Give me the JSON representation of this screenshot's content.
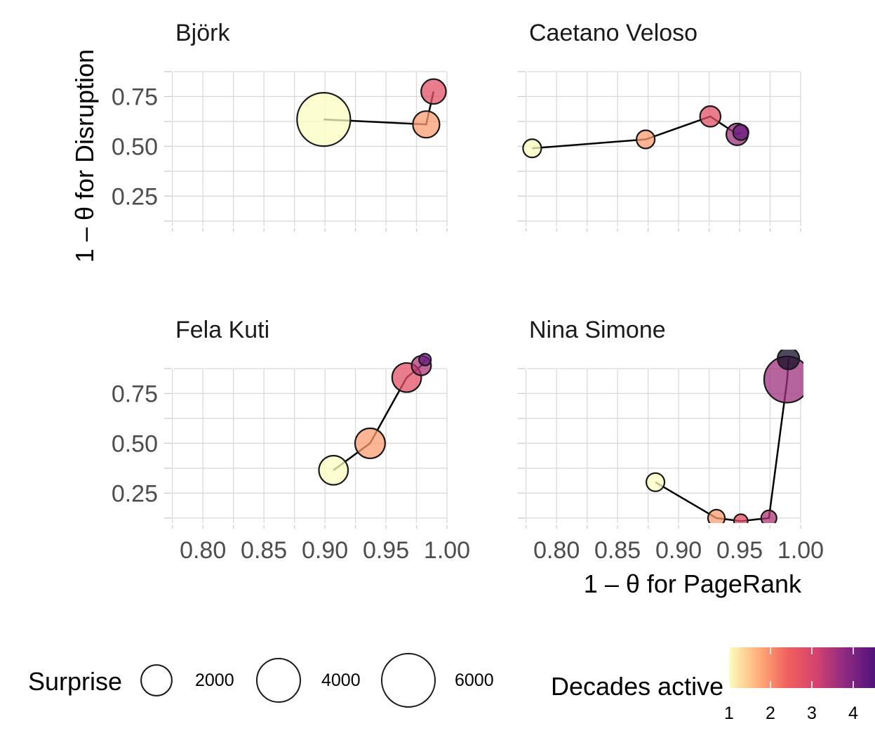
{
  "chart_data": {
    "type": "scatter",
    "subtype": "connected-bubble-facets",
    "xlabel": "1 – θ for PageRank",
    "ylabel": "1 – θ for Disruption",
    "xlim": [
      0.77,
      1.0
    ],
    "ylim": [
      0.1,
      0.97
    ],
    "x_ticks": [
      0.8,
      0.85,
      0.9,
      0.95,
      1.0
    ],
    "x_tick_labels": [
      "0.80",
      "0.85",
      "0.90",
      "0.95",
      "1.00"
    ],
    "y_ticks": [
      0.25,
      0.5,
      0.75
    ],
    "y_tick_labels": [
      "0.25",
      "0.50",
      "0.75"
    ],
    "grid": true,
    "facets": [
      {
        "title": "Björk",
        "points": [
          {
            "x": 0.899,
            "y": 0.635,
            "decade": 1,
            "surprise": 6000
          },
          {
            "x": 0.983,
            "y": 0.61,
            "decade": 2,
            "surprise": 1500
          },
          {
            "x": 0.989,
            "y": 0.775,
            "decade": 3,
            "surprise": 1300
          }
        ]
      },
      {
        "title": "Caetano Veloso",
        "points": [
          {
            "x": 0.78,
            "y": 0.49,
            "decade": 1,
            "surprise": 700
          },
          {
            "x": 0.873,
            "y": 0.535,
            "decade": 2,
            "surprise": 700
          },
          {
            "x": 0.926,
            "y": 0.65,
            "decade": 3,
            "surprise": 900
          },
          {
            "x": 0.948,
            "y": 0.56,
            "decade": 4,
            "surprise": 1000
          },
          {
            "x": 0.951,
            "y": 0.57,
            "decade": 4.4,
            "surprise": 500
          }
        ]
      },
      {
        "title": "Fela Kuti",
        "points": [
          {
            "x": 0.907,
            "y": 0.365,
            "decade": 1,
            "surprise": 1800
          },
          {
            "x": 0.937,
            "y": 0.5,
            "decade": 2,
            "surprise": 1900
          },
          {
            "x": 0.967,
            "y": 0.83,
            "decade": 3,
            "surprise": 1800
          },
          {
            "x": 0.979,
            "y": 0.89,
            "decade": 3.8,
            "surprise": 800
          },
          {
            "x": 0.982,
            "y": 0.92,
            "decade": 4.4,
            "surprise": 300
          }
        ]
      },
      {
        "title": "Nina Simone",
        "points": [
          {
            "x": 0.881,
            "y": 0.305,
            "decade": 1,
            "surprise": 700
          },
          {
            "x": 0.931,
            "y": 0.125,
            "decade": 2,
            "surprise": 600
          },
          {
            "x": 0.951,
            "y": 0.11,
            "decade": 3,
            "surprise": 400
          },
          {
            "x": 0.974,
            "y": 0.125,
            "decade": 3.8,
            "surprise": 500
          },
          {
            "x": 0.989,
            "y": 0.82,
            "decade": 4,
            "surprise": 4500
          },
          {
            "x": 0.99,
            "y": 0.925,
            "decade": 5,
            "surprise": 1000
          }
        ]
      }
    ],
    "legend": {
      "placement": "bottom",
      "surprise": {
        "title": "Surprise",
        "labels": [
          "2000",
          "4000",
          "6000"
        ],
        "values": [
          2000,
          4000,
          6000
        ]
      },
      "decades": {
        "title": "Decades active",
        "labels": [
          "1",
          "2",
          "3",
          "4"
        ],
        "values": [
          1,
          2,
          3,
          4
        ],
        "colormap": "magma-reversed"
      }
    }
  }
}
